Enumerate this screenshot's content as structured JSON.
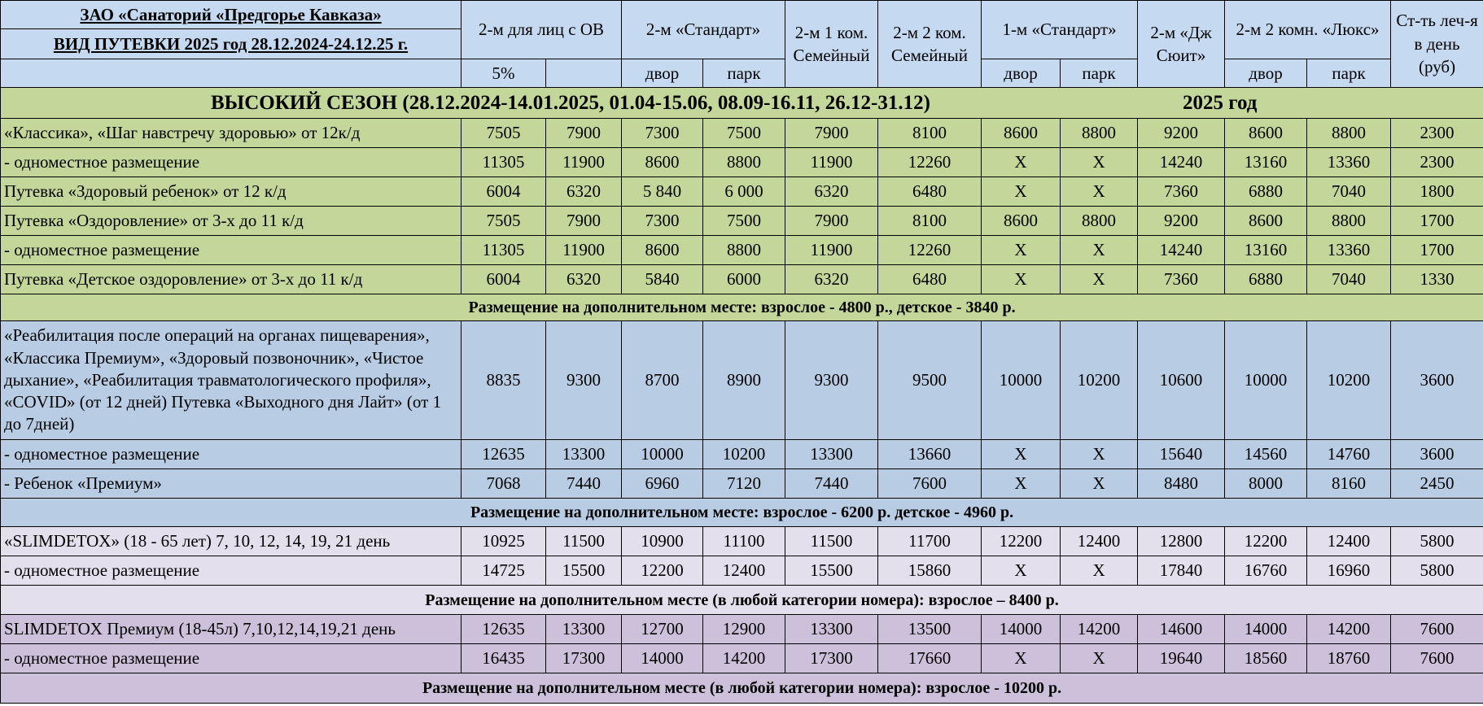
{
  "header": {
    "title1": "ЗАО «Санаторий «Предгорье Кавказа»",
    "title2": "ВИД ПУТЕВКИ 2025 год 28.12.2024-24.12.25 г.",
    "cols": {
      "ov": "2-м для лиц с ОВ",
      "standard2": "2-м «Стандарт»",
      "fam1": "2-м  1 ком. Семейный",
      "fam2": "2-м 2 ком. Семейный",
      "standard1": "1-м «Стандарт»",
      "suite": "2-м «Дж Сюит»",
      "lux": "2-м 2 комн. «Люкс»",
      "treatment": "Ст-ть леч-я в день (руб)"
    },
    "sub": {
      "ov_a": "5%",
      "ov_b": "",
      "yard": "двор",
      "park": "парк"
    }
  },
  "season": {
    "title": "ВЫСОКИЙ СЕЗОН (28.12.2024-14.01.2025, 01.04-15.06, 08.09-16.11, 26.12-31.12)",
    "year": "2025 год"
  },
  "colors": {
    "header": "#c5d9f1",
    "green": "#c4d79b",
    "blue": "#b8cce4",
    "lavender": "#e4dfec",
    "purple": "#ccc0da"
  },
  "groups": [
    {
      "color": "green",
      "rows": [
        {
          "label": " «Классика», «Шаг навстречу здоровью»  от 12к/д",
          "values": [
            "7505",
            "7900",
            "7300",
            "7500",
            "7900",
            "8100",
            "8600",
            "8800",
            "9200",
            "8600",
            "8800",
            "2300"
          ]
        },
        {
          "label": "- одноместное размещение",
          "values": [
            "11305",
            "11900",
            "8600",
            "8800",
            "11900",
            "12260",
            "X",
            "X",
            "14240",
            "13160",
            "13360",
            "2300"
          ]
        },
        {
          "label": "Путевка «Здоровый ребенок» от 12 к/д",
          "values": [
            "6004",
            "6320",
            "5 840",
            "6 000",
            "6320",
            "6480",
            "X",
            "X",
            "7360",
            "6880",
            "7040",
            "1800"
          ]
        },
        {
          "label": "Путевка «Оздоровление» от 3-х до 11 к/д",
          "values": [
            "7505",
            "7900",
            "7300",
            "7500",
            "7900",
            "8100",
            "8600",
            "8800",
            "9200",
            "8600",
            "8800",
            "1700"
          ]
        },
        {
          "label": "- одноместное размещение",
          "values": [
            "11305",
            "11900",
            "8600",
            "8800",
            "11900",
            "12260",
            "X",
            "X",
            "14240",
            "13160",
            "13360",
            "1700"
          ]
        },
        {
          "label": "Путевка «Детское оздоровление» от 3-х до 11 к/д",
          "values": [
            "6004",
            "6320",
            "5840",
            "6000",
            "6320",
            "6480",
            "X",
            "X",
            "7360",
            "6880",
            "7040",
            "1330"
          ]
        }
      ],
      "note": "Размещение на дополнительном месте: взрослое - 4800 р., детское - 3840 р."
    },
    {
      "color": "blue",
      "rows": [
        {
          "label": "«Реабилитация после операций на органах пищеварения», «Классика Премиум», «Здоровый позвоночник», «Чистое дыхание», «Реабилитация травматологического профиля», «COVID» (от 12 дней) Путевка «Выходного дня Лайт» (от 1 до 7дней)",
          "values": [
            "8835",
            "9300",
            "8700",
            "8900",
            "9300",
            "9500",
            "10000",
            "10200",
            "10600",
            "10000",
            "10200",
            "3600"
          ],
          "tall": true
        },
        {
          "label": "- одноместное размещение",
          "values": [
            "12635",
            "13300",
            "10000",
            "10200",
            "13300",
            "13660",
            "X",
            "X",
            "15640",
            "14560",
            "14760",
            "3600"
          ]
        },
        {
          "label": "- Ребенок «Премиум»",
          "values": [
            "7068",
            "7440",
            "6960",
            "7120",
            "7440",
            "7600",
            "X",
            "X",
            "8480",
            "8000",
            "8160",
            "2450"
          ]
        }
      ],
      "note": "Размещение на дополнительном месте: взрослое - 6200 р. детское - 4960 р."
    },
    {
      "color": "lavender",
      "rows": [
        {
          "label": "«SLIMDETOX» (18 - 65 лет) 7, 10, 12, 14, 19, 21 день",
          "values": [
            "10925",
            "11500",
            "10900",
            "11100",
            "11500",
            "11700",
            "12200",
            "12400",
            "12800",
            "12200",
            "12400",
            "5800"
          ]
        },
        {
          "label": "- одноместное размещение",
          "values": [
            "14725",
            "15500",
            "12200",
            "12400",
            "15500",
            "15860",
            "X",
            "X",
            "17840",
            "16760",
            "16960",
            "5800"
          ]
        }
      ],
      "note": "Размещение на дополнительном месте (в любой категории номера): взрослое – 8400 р."
    },
    {
      "color": "purple",
      "rows": [
        {
          "label": "SLIMDETOX Премиум (18-45л) 7,10,12,14,19,21 день",
          "values": [
            "12635",
            "13300",
            "12700",
            "12900",
            "13300",
            "13500",
            "14000",
            "14200",
            "14600",
            "14000",
            "14200",
            "7600"
          ]
        },
        {
          "label": "- одноместное размещение",
          "values": [
            "16435",
            "17300",
            "14000",
            "14200",
            "17300",
            "17660",
            "X",
            "X",
            "19640",
            "18560",
            "18760",
            "7600"
          ]
        }
      ],
      "note": "Размещение на дополнительном месте (в любой категории номера): взрослое - 10200 р."
    }
  ]
}
